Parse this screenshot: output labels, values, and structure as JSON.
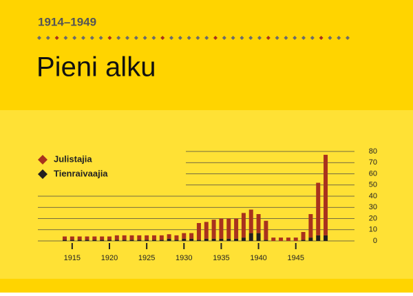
{
  "chart_data": {
    "type": "stacked-bar",
    "subtitle": "1914–1949",
    "title": "Pieni alku",
    "categories": [
      null,
      1915,
      null,
      null,
      null,
      null,
      1920,
      null,
      null,
      null,
      null,
      1925,
      null,
      null,
      null,
      null,
      1930,
      null,
      null,
      null,
      null,
      1935,
      null,
      null,
      null,
      null,
      1940,
      null,
      null,
      null,
      null,
      1945,
      null,
      null,
      null,
      null
    ],
    "series": [
      {
        "name": "Tienraivaajia",
        "color": "#231f20",
        "values": [
          1,
          1,
          1,
          1,
          1,
          1,
          1,
          1,
          1,
          1,
          1,
          1,
          1,
          1,
          2,
          1,
          2,
          2,
          1,
          2,
          2,
          2,
          2,
          2,
          3,
          7,
          7,
          1,
          0,
          0,
          0,
          0,
          1,
          3,
          5,
          5
        ]
      },
      {
        "name": "Julistajia",
        "color": "#a8321d",
        "values": [
          3,
          3,
          3,
          3,
          3,
          3,
          3,
          4,
          4,
          4,
          4,
          4,
          4,
          4,
          4,
          4,
          5,
          5,
          15,
          15,
          17,
          18,
          18,
          18,
          22,
          21,
          17,
          17,
          3,
          3,
          3,
          3,
          7,
          21,
          47,
          72
        ]
      }
    ],
    "ylim": [
      0,
      80
    ],
    "yticks": [
      0,
      10,
      20,
      30,
      40,
      50,
      60,
      70,
      80
    ],
    "grid": true,
    "legend": "upper-left"
  }
}
